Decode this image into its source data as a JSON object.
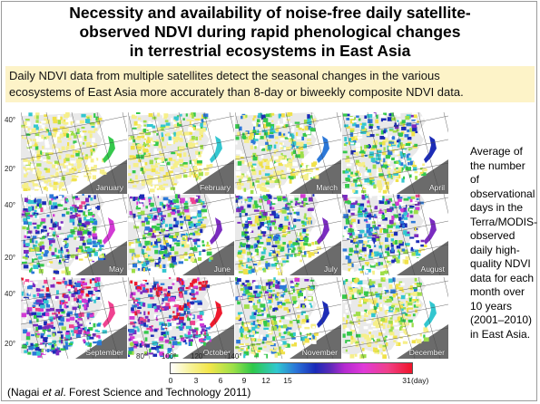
{
  "title_lines": [
    "Necessity and availability of noise-free daily satellite-",
    "observed NDVI during rapid phenological changes",
    "in terrestrial ecosystems in East Asia"
  ],
  "subtitle_lines": [
    "Daily NDVI data from multiple satellites detect the seasonal changes in the various",
    "ecosystems of East Asia more accurately than 8-day or biweekly composite NDVI data."
  ],
  "maps": [
    {
      "month": "January",
      "level": 0.15
    },
    {
      "month": "February",
      "level": 0.2
    },
    {
      "month": "March",
      "level": 0.3
    },
    {
      "month": "April",
      "level": 0.4
    },
    {
      "month": "May",
      "level": 0.6
    },
    {
      "month": "June",
      "level": 0.55
    },
    {
      "month": "July",
      "level": 0.5
    },
    {
      "month": "August",
      "level": 0.55
    },
    {
      "month": "September",
      "level": 0.75
    },
    {
      "month": "October",
      "level": 0.8
    },
    {
      "month": "November",
      "level": 0.45
    },
    {
      "month": "December",
      "level": 0.25
    }
  ],
  "lat_labels": [
    "40°",
    "20°",
    "40°",
    "20°",
    "40°",
    "20°"
  ],
  "lon_labels": [
    "80°",
    "100°",
    "120°",
    "140°"
  ],
  "side_text_lines": [
    "Average of",
    "the number of",
    "observational",
    "days in the",
    "Terra/MODIS-",
    "observed",
    "daily high-",
    "quality NDVI",
    "data for each",
    "month over",
    "10 years",
    "(2001–2010)",
    "in East Asia."
  ],
  "colorbar": {
    "ticks": [
      "0",
      "3",
      "6",
      "9",
      "12",
      "15",
      "31"
    ],
    "unit": "(day)"
  },
  "citation": {
    "prefix": "(Nagai ",
    "italic": "et al",
    "suffix": ". Forest Science and Technology 2011)"
  },
  "colors": {
    "subtitle_bg": "#fdf3c8",
    "sea": "#ffffff",
    "outside": "#6b6b6b"
  }
}
